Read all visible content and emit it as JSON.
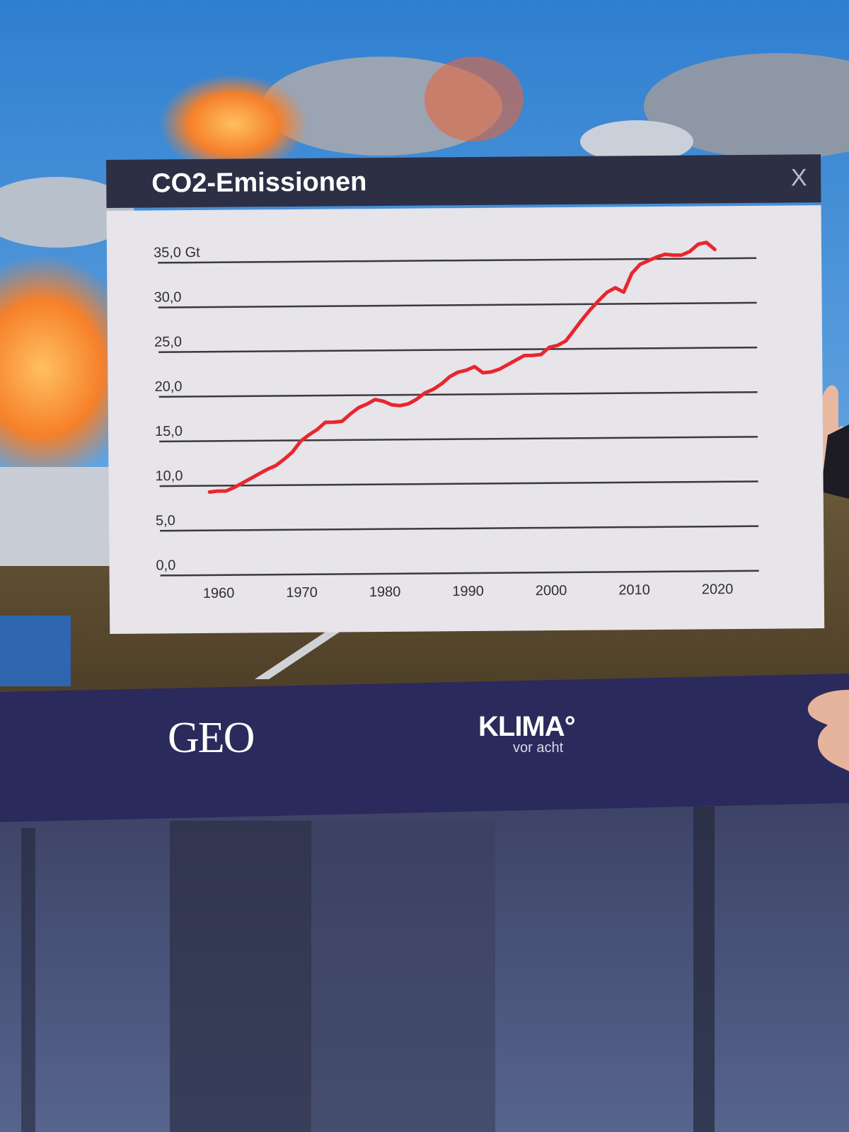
{
  "overlay": {
    "title": "CO2-Emissionen",
    "close_label": "X"
  },
  "brand": {
    "geo_logo": "GEO",
    "klima_logo": "KLIMA°",
    "klima_sub": "vor acht"
  },
  "colors": {
    "header_bg": "#2d2f45",
    "panel_bg": "#e7e4ea",
    "line": "#e8262e",
    "grid": "#3a3a40",
    "brand_bar": "#2b2a5c"
  },
  "chart_data": {
    "type": "line",
    "title": "CO2-Emissionen",
    "xlabel": "",
    "ylabel": "",
    "y_ticks": [
      {
        "value": 0,
        "label": "0,0"
      },
      {
        "value": 5,
        "label": "5,0"
      },
      {
        "value": 10,
        "label": "10,0"
      },
      {
        "value": 15,
        "label": "15,0"
      },
      {
        "value": 20,
        "label": "20,0"
      },
      {
        "value": 25,
        "label": "25,0"
      },
      {
        "value": 30,
        "label": "30,0"
      },
      {
        "value": 35,
        "label": "35,0 Gt"
      }
    ],
    "x_ticks": [
      1960,
      1970,
      1980,
      1990,
      2000,
      2010,
      2020
    ],
    "xlim": [
      1953,
      2025
    ],
    "ylim": [
      0,
      35
    ],
    "grid": true,
    "series": [
      {
        "x": [
          1959,
          1960,
          1961,
          1962,
          1963,
          1964,
          1965,
          1966,
          1967,
          1968,
          1969,
          1970,
          1971,
          1972,
          1973,
          1974,
          1975,
          1976,
          1977,
          1978,
          1979,
          1980,
          1981,
          1982,
          1983,
          1984,
          1985,
          1986,
          1987,
          1988,
          1989,
          1990,
          1991,
          1992,
          1993,
          1994,
          1995,
          1996,
          1997,
          1998,
          1999,
          2000,
          2001,
          2002,
          2003,
          2004,
          2005,
          2006,
          2007,
          2008,
          2009,
          2010,
          2011,
          2012,
          2013,
          2014,
          2015,
          2016,
          2017,
          2018,
          2019,
          2020
        ],
        "y": [
          9.3,
          9.4,
          9.4,
          9.8,
          10.3,
          10.8,
          11.3,
          11.8,
          12.2,
          12.9,
          13.7,
          14.9,
          15.6,
          16.2,
          17.0,
          17.0,
          17.1,
          17.9,
          18.6,
          19.0,
          19.5,
          19.3,
          18.9,
          18.8,
          19.0,
          19.5,
          20.2,
          20.6,
          21.2,
          22.0,
          22.5,
          22.7,
          23.1,
          22.4,
          22.5,
          22.8,
          23.3,
          23.8,
          24.3,
          24.3,
          24.4,
          25.2,
          25.4,
          25.9,
          27.1,
          28.3,
          29.4,
          30.4,
          31.3,
          31.8,
          31.3,
          33.4,
          34.4,
          34.8,
          35.2,
          35.5,
          35.4,
          35.4,
          35.8,
          36.6,
          36.8,
          36.0
        ]
      }
    ]
  }
}
